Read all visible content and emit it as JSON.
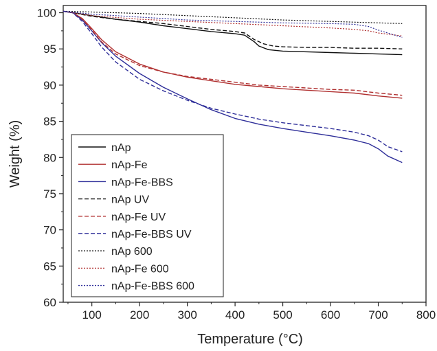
{
  "chart_data": {
    "type": "line",
    "title": "",
    "xlabel": "Temperature (°C)",
    "ylabel": "Weight (%)",
    "xlim": [
      40,
      800
    ],
    "ylim": [
      60,
      101
    ],
    "x_ticks": [
      "100",
      "200",
      "300",
      "400",
      "500",
      "600",
      "700",
      "800"
    ],
    "y_ticks": [
      "60",
      "65",
      "70",
      "75",
      "80",
      "85",
      "90",
      "95",
      "100"
    ],
    "grid": false,
    "legend_position": "bottom-left",
    "series": [
      {
        "name": "nAp",
        "color": "#111111",
        "style": "solid",
        "x": [
          40,
          60,
          100,
          150,
          200,
          250,
          300,
          350,
          400,
          420,
          440,
          450,
          470,
          500,
          550,
          600,
          650,
          700,
          750
        ],
        "y": [
          100.2,
          100.0,
          99.6,
          99.1,
          98.7,
          98.2,
          97.8,
          97.4,
          97.1,
          96.9,
          96.0,
          95.4,
          94.9,
          94.7,
          94.6,
          94.5,
          94.4,
          94.3,
          94.2
        ]
      },
      {
        "name": "nAp-Fe",
        "color": "#b03030",
        "style": "solid",
        "x": [
          40,
          60,
          80,
          100,
          120,
          150,
          200,
          250,
          300,
          350,
          400,
          450,
          500,
          550,
          600,
          650,
          700,
          750
        ],
        "y": [
          100.2,
          100.0,
          99.2,
          97.8,
          96.3,
          94.6,
          92.9,
          91.8,
          91.1,
          90.6,
          90.1,
          89.8,
          89.5,
          89.3,
          89.1,
          88.9,
          88.5,
          88.2
        ]
      },
      {
        "name": "nAp-Fe-BBS",
        "color": "#2e2e99",
        "style": "solid",
        "x": [
          40,
          60,
          80,
          100,
          120,
          150,
          200,
          250,
          300,
          350,
          400,
          450,
          500,
          550,
          600,
          650,
          680,
          700,
          720,
          750
        ],
        "y": [
          100.2,
          100.0,
          99.0,
          97.5,
          95.9,
          94.0,
          91.6,
          89.7,
          88.1,
          86.6,
          85.4,
          84.6,
          84.0,
          83.5,
          83.0,
          82.4,
          81.9,
          81.2,
          80.2,
          79.3
        ]
      },
      {
        "name": "nAp UV",
        "color": "#111111",
        "style": "dashed",
        "x": [
          40,
          60,
          100,
          150,
          200,
          250,
          300,
          350,
          400,
          420,
          440,
          460,
          480,
          500,
          550,
          600,
          650,
          700,
          750
        ],
        "y": [
          100.2,
          100.0,
          99.5,
          99.1,
          98.8,
          98.5,
          98.1,
          97.7,
          97.4,
          97.2,
          96.3,
          95.7,
          95.4,
          95.3,
          95.2,
          95.2,
          95.1,
          95.1,
          95.0
        ]
      },
      {
        "name": "nAp-Fe UV",
        "color": "#b03030",
        "style": "dashed",
        "x": [
          40,
          60,
          80,
          100,
          120,
          150,
          200,
          250,
          300,
          350,
          400,
          450,
          500,
          550,
          600,
          650,
          700,
          750
        ],
        "y": [
          100.2,
          100.0,
          99.1,
          97.6,
          96.0,
          94.3,
          92.7,
          91.8,
          91.2,
          90.8,
          90.4,
          90.0,
          89.8,
          89.6,
          89.4,
          89.3,
          88.9,
          88.6
        ]
      },
      {
        "name": "nAp-Fe-BBS UV",
        "color": "#2e2e99",
        "style": "dashed",
        "x": [
          40,
          60,
          80,
          100,
          120,
          150,
          200,
          250,
          300,
          350,
          400,
          450,
          500,
          550,
          600,
          650,
          680,
          700,
          720,
          750
        ],
        "y": [
          100.2,
          100.0,
          98.8,
          97.1,
          95.3,
          93.2,
          90.8,
          89.2,
          87.9,
          86.8,
          86.0,
          85.3,
          84.8,
          84.4,
          84.0,
          83.5,
          83.0,
          82.4,
          81.5,
          80.8
        ]
      },
      {
        "name": "nAp 600",
        "color": "#111111",
        "style": "dotted",
        "x": [
          40,
          100,
          200,
          300,
          400,
          500,
          600,
          700,
          750
        ],
        "y": [
          100.2,
          100.1,
          99.9,
          99.6,
          99.3,
          99.0,
          98.8,
          98.6,
          98.5
        ]
      },
      {
        "name": "nAp-Fe 600",
        "color": "#b03030",
        "style": "dotted",
        "x": [
          40,
          100,
          200,
          300,
          400,
          500,
          600,
          650,
          680,
          700,
          750
        ],
        "y": [
          100.2,
          99.6,
          99.1,
          98.8,
          98.5,
          98.2,
          97.9,
          97.7,
          97.5,
          97.2,
          96.8
        ]
      },
      {
        "name": "nAp-Fe-BBS 600",
        "color": "#2e2e99",
        "style": "dotted",
        "x": [
          40,
          100,
          200,
          300,
          400,
          500,
          600,
          650,
          680,
          700,
          750
        ],
        "y": [
          100.2,
          99.8,
          99.4,
          99.0,
          98.8,
          98.6,
          98.5,
          98.4,
          98.1,
          97.6,
          96.6
        ]
      }
    ]
  }
}
